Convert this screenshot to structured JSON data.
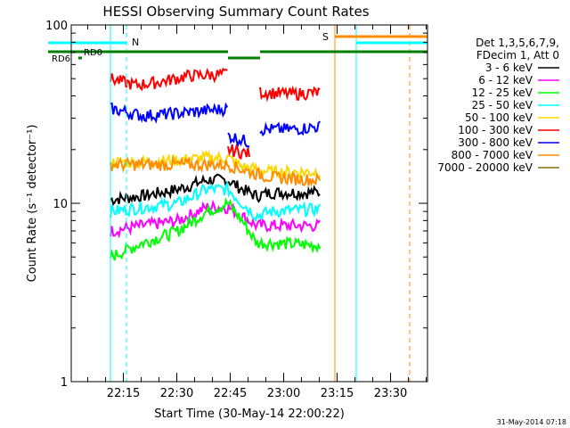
{
  "chart_data": {
    "type": "line",
    "title": "HESSI Observing Summary Count Rates",
    "xlabel": "Start Time (30-May-14 22:00:22)",
    "ylabel": "Count Rate (s⁻¹ detector⁻¹)",
    "y_scale": "log",
    "ylim": [
      1,
      100
    ],
    "xlim_minutes": [
      0,
      100
    ],
    "x_tick_labels": [
      "22:15",
      "22:30",
      "22:45",
      "23:00",
      "23:15",
      "23:30"
    ],
    "y_tick_labels": [
      "1",
      "10",
      "100"
    ],
    "legend_header": [
      "Det 1,3,5,6,7,9,",
      "FDecim 1, Att 0"
    ],
    "legend_position": "right",
    "series": [
      {
        "name": "3 - 6 keV",
        "color": "#000000",
        "segments": [
          [
            {
              "x": 11,
              "y": 10.5
            },
            {
              "x": 20,
              "y": 11
            },
            {
              "x": 30,
              "y": 12
            },
            {
              "x": 38,
              "y": 13.5
            },
            {
              "x": 44,
              "y": 13.5
            },
            {
              "x": 48,
              "y": 12
            },
            {
              "x": 52,
              "y": 11
            },
            {
              "x": 56,
              "y": 11.5
            },
            {
              "x": 70,
              "y": 11.5
            }
          ]
        ]
      },
      {
        "name": "6 - 12 keV",
        "color": "#ff00ff",
        "segments": [
          [
            {
              "x": 11,
              "y": 7
            },
            {
              "x": 20,
              "y": 7.5
            },
            {
              "x": 30,
              "y": 8
            },
            {
              "x": 38,
              "y": 9.5
            },
            {
              "x": 44,
              "y": 9.5
            },
            {
              "x": 48,
              "y": 8.5
            },
            {
              "x": 52,
              "y": 7.5
            },
            {
              "x": 56,
              "y": 7.5
            },
            {
              "x": 70,
              "y": 7.5
            }
          ]
        ]
      },
      {
        "name": "12 - 25 keV",
        "color": "#00ff00",
        "segments": [
          [
            {
              "x": 11,
              "y": 5
            },
            {
              "x": 20,
              "y": 6
            },
            {
              "x": 30,
              "y": 7
            },
            {
              "x": 38,
              "y": 9
            },
            {
              "x": 44,
              "y": 10
            },
            {
              "x": 48,
              "y": 8
            },
            {
              "x": 52,
              "y": 6
            },
            {
              "x": 56,
              "y": 6
            },
            {
              "x": 70,
              "y": 5.8
            }
          ]
        ]
      },
      {
        "name": "25 - 50 keV",
        "color": "#00ffff",
        "segments": [
          [
            {
              "x": 11,
              "y": 9
            },
            {
              "x": 20,
              "y": 9.5
            },
            {
              "x": 30,
              "y": 10
            },
            {
              "x": 38,
              "y": 12
            },
            {
              "x": 44,
              "y": 12
            },
            {
              "x": 48,
              "y": 10
            },
            {
              "x": 52,
              "y": 8.5
            },
            {
              "x": 56,
              "y": 9
            },
            {
              "x": 70,
              "y": 9.3
            }
          ]
        ]
      },
      {
        "name": "50 - 100 keV",
        "color": "#ffd700",
        "segments": [
          [
            {
              "x": 11,
              "y": 17
            },
            {
              "x": 20,
              "y": 17
            },
            {
              "x": 30,
              "y": 17.5
            },
            {
              "x": 38,
              "y": 18
            },
            {
              "x": 44,
              "y": 18
            },
            {
              "x": 48,
              "y": 16
            },
            {
              "x": 52,
              "y": 15.5
            },
            {
              "x": 56,
              "y": 15
            },
            {
              "x": 70,
              "y": 15
            }
          ]
        ]
      },
      {
        "name": "100 - 300 keV",
        "color": "#ff0000",
        "segments": [
          [
            {
              "x": 11,
              "y": 50
            },
            {
              "x": 18,
              "y": 46
            },
            {
              "x": 25,
              "y": 48
            },
            {
              "x": 33,
              "y": 52
            },
            {
              "x": 44,
              "y": 53
            }
          ],
          [
            {
              "x": 44,
              "y": 20
            },
            {
              "x": 50,
              "y": 19
            }
          ],
          [
            {
              "x": 53,
              "y": 42
            },
            {
              "x": 62,
              "y": 41
            },
            {
              "x": 70,
              "y": 42
            }
          ]
        ]
      },
      {
        "name": "300 - 800 keV",
        "color": "#0000ff",
        "segments": [
          [
            {
              "x": 11,
              "y": 34
            },
            {
              "x": 20,
              "y": 31
            },
            {
              "x": 30,
              "y": 32
            },
            {
              "x": 44,
              "y": 34
            }
          ],
          [
            {
              "x": 44,
              "y": 24
            },
            {
              "x": 50,
              "y": 22
            }
          ],
          [
            {
              "x": 53,
              "y": 26
            },
            {
              "x": 62,
              "y": 26
            },
            {
              "x": 70,
              "y": 27
            }
          ]
        ]
      },
      {
        "name": "800 - 7000 keV",
        "color": "#ff8c00",
        "segments": [
          [
            {
              "x": 11,
              "y": 16.5
            },
            {
              "x": 20,
              "y": 16.5
            },
            {
              "x": 30,
              "y": 16.5
            },
            {
              "x": 44,
              "y": 16.5
            },
            {
              "x": 50,
              "y": 15
            },
            {
              "x": 56,
              "y": 14
            },
            {
              "x": 70,
              "y": 13.5
            }
          ]
        ]
      },
      {
        "name": "7000 - 20000 keV",
        "color": "#8b6914",
        "segments": []
      }
    ],
    "markers": [
      {
        "label": "N",
        "color": "#00ffff"
      },
      {
        "label": "S",
        "color": "#ff8c00"
      },
      {
        "label": "RD0",
        "color": "#007f00"
      },
      {
        "label": "RD6",
        "color": "#007f00"
      }
    ]
  },
  "footer": {
    "timestamp": "31-May-2014 07:18"
  }
}
